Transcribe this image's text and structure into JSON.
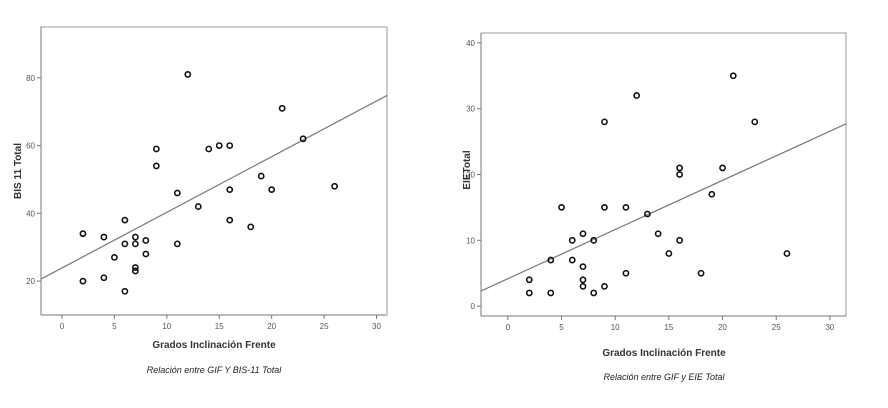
{
  "chart_data": [
    {
      "type": "scatter",
      "xlabel": "Grados Inclinación Frente",
      "ylabel": "BIS 11 Total",
      "caption": "Relación entre GIF Y BIS-11 Total",
      "xlim": [
        -2,
        31
      ],
      "ylim": [
        10,
        95
      ],
      "xticks": [
        0,
        5,
        10,
        15,
        20,
        25,
        30
      ],
      "yticks": [
        20,
        40,
        60,
        80
      ],
      "fit_line": {
        "x": [
          -2,
          31
        ],
        "y": [
          20.6,
          74.8
        ]
      },
      "points": [
        {
          "x": 2,
          "y": 34
        },
        {
          "x": 2,
          "y": 20
        },
        {
          "x": 4,
          "y": 33
        },
        {
          "x": 4,
          "y": 21
        },
        {
          "x": 5,
          "y": 27
        },
        {
          "x": 6,
          "y": 38
        },
        {
          "x": 6,
          "y": 31
        },
        {
          "x": 6,
          "y": 17
        },
        {
          "x": 7,
          "y": 33
        },
        {
          "x": 7,
          "y": 31
        },
        {
          "x": 7,
          "y": 24
        },
        {
          "x": 7,
          "y": 23
        },
        {
          "x": 8,
          "y": 32
        },
        {
          "x": 8,
          "y": 28
        },
        {
          "x": 9,
          "y": 59
        },
        {
          "x": 9,
          "y": 54
        },
        {
          "x": 11,
          "y": 46
        },
        {
          "x": 11,
          "y": 31
        },
        {
          "x": 12,
          "y": 81
        },
        {
          "x": 13,
          "y": 42
        },
        {
          "x": 14,
          "y": 59
        },
        {
          "x": 15,
          "y": 60
        },
        {
          "x": 16,
          "y": 60
        },
        {
          "x": 16,
          "y": 47
        },
        {
          "x": 16,
          "y": 38
        },
        {
          "x": 18,
          "y": 36
        },
        {
          "x": 19,
          "y": 51
        },
        {
          "x": 20,
          "y": 47
        },
        {
          "x": 21,
          "y": 71
        },
        {
          "x": 23,
          "y": 62
        },
        {
          "x": 26,
          "y": 48
        }
      ]
    },
    {
      "type": "scatter",
      "xlabel": "Grados Inclinación Frente",
      "ylabel": "EIETotal",
      "caption": "Relación entre GIF y EIE Total",
      "xlim": [
        -2.5,
        31.5
      ],
      "ylim": [
        -1.5,
        41.5
      ],
      "xticks": [
        0,
        5,
        10,
        15,
        20,
        25,
        30
      ],
      "yticks": [
        0,
        10,
        20,
        30,
        40
      ],
      "fit_line": {
        "x": [
          -2.5,
          31.5
        ],
        "y": [
          2.3,
          27.7
        ]
      },
      "points": [
        {
          "x": 2,
          "y": 4
        },
        {
          "x": 2,
          "y": 2
        },
        {
          "x": 4,
          "y": 7
        },
        {
          "x": 4,
          "y": 2
        },
        {
          "x": 5,
          "y": 15
        },
        {
          "x": 6,
          "y": 10
        },
        {
          "x": 6,
          "y": 7
        },
        {
          "x": 7,
          "y": 11
        },
        {
          "x": 7,
          "y": 6
        },
        {
          "x": 7,
          "y": 4
        },
        {
          "x": 7,
          "y": 3
        },
        {
          "x": 8,
          "y": 10
        },
        {
          "x": 8,
          "y": 2
        },
        {
          "x": 9,
          "y": 28
        },
        {
          "x": 9,
          "y": 15
        },
        {
          "x": 9,
          "y": 3
        },
        {
          "x": 11,
          "y": 15
        },
        {
          "x": 11,
          "y": 5
        },
        {
          "x": 12,
          "y": 32
        },
        {
          "x": 13,
          "y": 14
        },
        {
          "x": 14,
          "y": 11
        },
        {
          "x": 15,
          "y": 8
        },
        {
          "x": 16,
          "y": 21
        },
        {
          "x": 16,
          "y": 20
        },
        {
          "x": 16,
          "y": 10
        },
        {
          "x": 18,
          "y": 5
        },
        {
          "x": 19,
          "y": 17
        },
        {
          "x": 20,
          "y": 21
        },
        {
          "x": 21,
          "y": 35
        },
        {
          "x": 23,
          "y": 28
        },
        {
          "x": 26,
          "y": 8
        }
      ]
    }
  ]
}
